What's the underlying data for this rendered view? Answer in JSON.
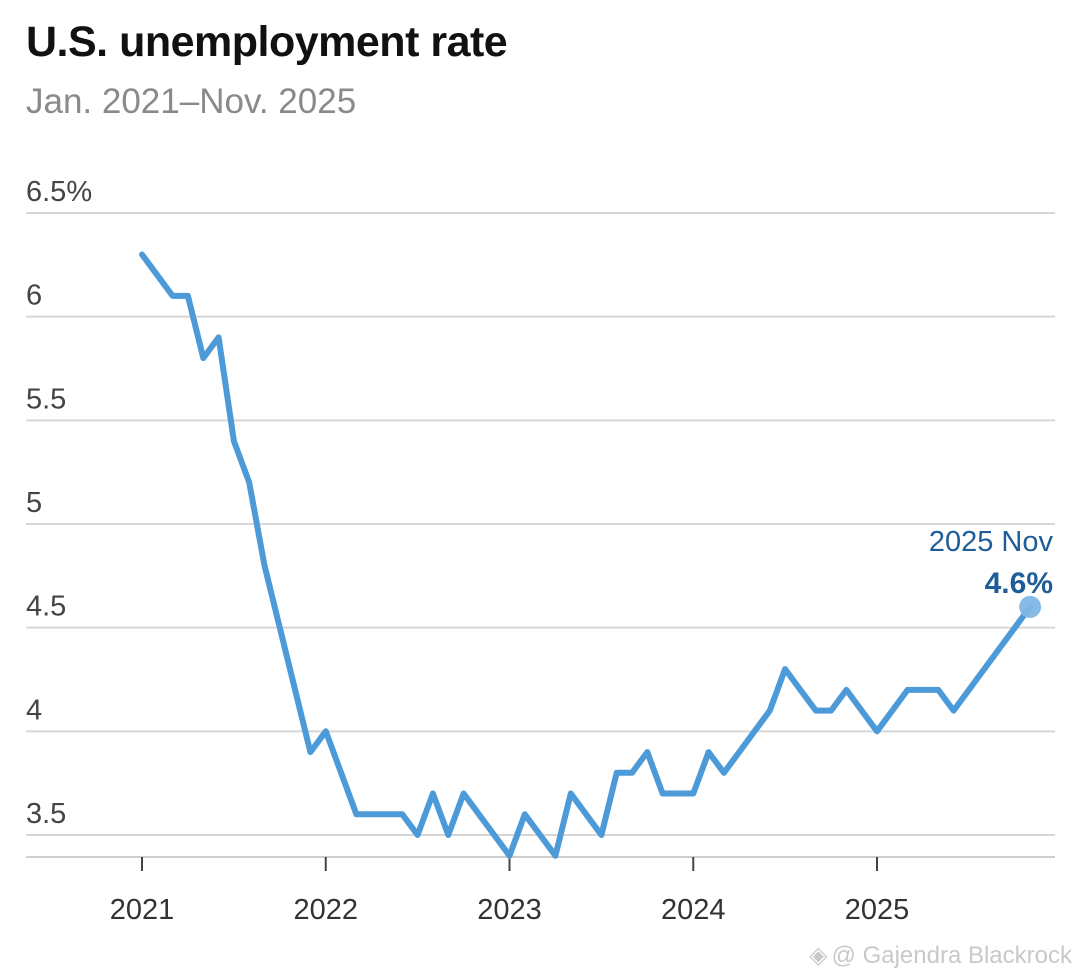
{
  "title": "U.S. unemployment rate",
  "subtitle": "Jan. 2021–Nov. 2025",
  "watermark": "@ Gajendra Blackrock",
  "chart_data": {
    "type": "line",
    "title": "U.S. unemployment rate",
    "subtitle": "Jan. 2021–Nov. 2025",
    "xlabel": "",
    "ylabel": "",
    "ylim": [
      3.5,
      6.5
    ],
    "yticks": [
      {
        "value": 6.5,
        "label": "6.5%"
      },
      {
        "value": 6,
        "label": "6"
      },
      {
        "value": 5.5,
        "label": "5.5"
      },
      {
        "value": 5,
        "label": "5"
      },
      {
        "value": 4.5,
        "label": "4.5"
      },
      {
        "value": 4,
        "label": "4"
      },
      {
        "value": 3.5,
        "label": "3.5"
      }
    ],
    "xticks": [
      "2021",
      "2022",
      "2023",
      "2024",
      "2025"
    ],
    "grid": true,
    "line_color": "#4d9ad9",
    "annotation_color": "#1f5d99",
    "series": [
      {
        "start": "2021-01",
        "values": [
          6.3,
          6.2,
          6.1,
          6.1,
          5.8,
          5.9,
          5.4,
          5.2,
          4.8,
          4.5,
          4.2,
          3.9,
          4.0,
          3.8,
          3.6,
          3.6,
          3.6,
          3.6,
          3.5,
          3.7,
          3.5,
          3.7,
          3.6,
          3.5,
          3.4,
          3.6,
          3.5,
          3.4,
          3.7,
          3.6,
          3.5,
          3.8,
          3.8,
          3.9,
          3.7,
          3.7,
          3.7,
          3.9,
          3.8,
          3.9,
          4.0,
          4.1,
          4.3,
          4.2,
          4.1,
          4.1,
          4.2,
          4.1,
          4.0,
          4.1,
          4.2,
          4.2,
          4.2,
          4.1,
          4.2,
          4.3,
          4.4,
          4.5,
          4.6
        ]
      }
    ],
    "annotation": {
      "period": "2025 Nov",
      "value": "4.6%"
    }
  }
}
